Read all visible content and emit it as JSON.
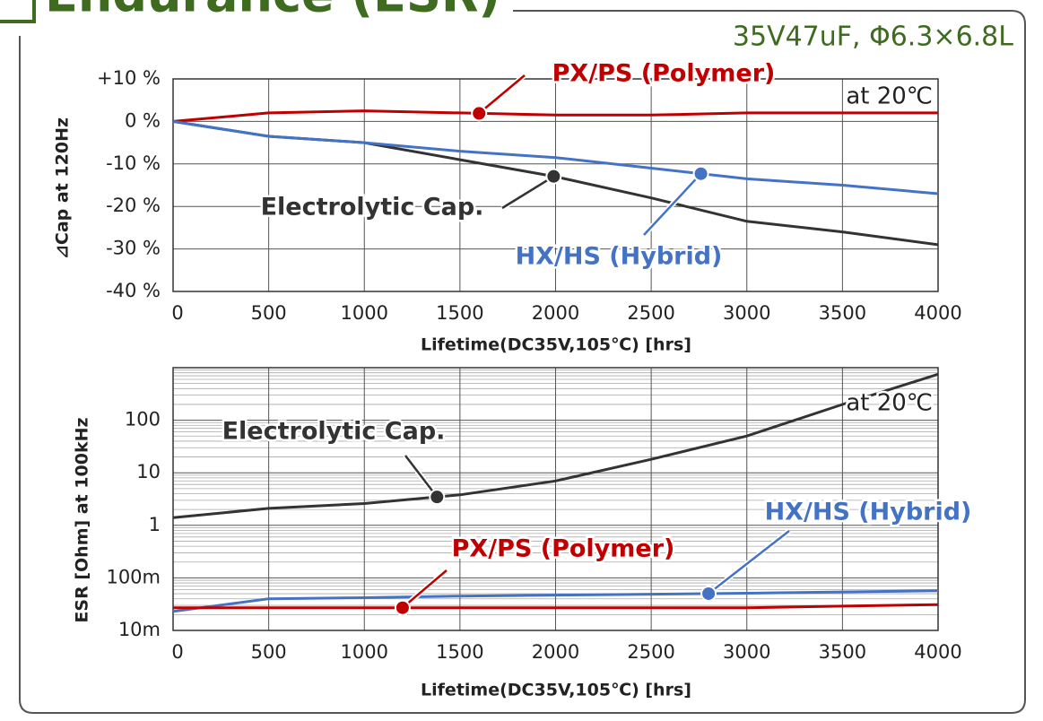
{
  "header": {
    "title": "Endurance (ESR)",
    "subtitle": "35V47uF, Φ6.3×6.8L"
  },
  "chart_data": [
    {
      "type": "line",
      "x_label": "Lifetime(DC35V,105℃) [hrs]",
      "y_label": "⊿Cap at 120Hz",
      "annotation": "at 20℃",
      "x": [
        0,
        500,
        1000,
        1500,
        2000,
        2500,
        3000,
        3500,
        4000
      ],
      "xlim": [
        0,
        4000
      ],
      "xticks": [
        0,
        500,
        1000,
        1500,
        2000,
        2500,
        3000,
        3500,
        4000
      ],
      "ylim": [
        -40,
        10
      ],
      "yticks": [
        {
          "value": -40,
          "label": "-40 %"
        },
        {
          "value": -30,
          "label": "-30 %"
        },
        {
          "value": -20,
          "label": "-20 %"
        },
        {
          "value": -10,
          "label": "-10 %"
        },
        {
          "value": 0,
          "label": "0 %"
        },
        {
          "value": 10,
          "label": "+10 %"
        }
      ],
      "grid": true,
      "log_y": false,
      "series": [
        {
          "name": "PX/PS (Polymer)",
          "color": "#c00000",
          "values": [
            0,
            2,
            2.5,
            2,
            1.5,
            1.5,
            2,
            2,
            2
          ]
        },
        {
          "name": "Electrolytic Cap.",
          "color": "#333333",
          "values": [
            0,
            -3.5,
            -5,
            -9,
            -13,
            -18,
            -23.5,
            -26,
            -29
          ]
        },
        {
          "name": "HX/HS (Hybrid)",
          "color": "#4472c4",
          "values": [
            0,
            -3.5,
            -5,
            -7,
            -8.5,
            -11,
            -13.5,
            -15,
            -17
          ]
        }
      ]
    },
    {
      "type": "line",
      "x_label": "Lifetime(DC35V,105℃) [hrs]",
      "y_label": "ESR [Ohm] at 100kHz",
      "annotation": "at 20℃",
      "x": [
        0,
        500,
        1000,
        1500,
        2000,
        2500,
        3000,
        3500,
        4000
      ],
      "xlim": [
        0,
        4000
      ],
      "xticks": [
        0,
        500,
        1000,
        1500,
        2000,
        2500,
        3000,
        3500,
        4000
      ],
      "ylim": [
        0.01,
        1000
      ],
      "yticks": [
        {
          "value": 0.01,
          "label": "10m"
        },
        {
          "value": 0.1,
          "label": "100m"
        },
        1,
        10,
        100
      ],
      "grid": true,
      "minor_grid": true,
      "log_y": true,
      "series": [
        {
          "name": "Electrolytic Cap.",
          "color": "#333333",
          "values": [
            1.4,
            2.1,
            2.6,
            3.8,
            7,
            18,
            50,
            200,
            750
          ]
        },
        {
          "name": "HX/HS (Hybrid)",
          "color": "#4472c4",
          "values": [
            0.023,
            0.04,
            0.042,
            0.045,
            0.047,
            0.049,
            0.051,
            0.054,
            0.057
          ]
        },
        {
          "name": "PX/PS (Polymer)",
          "color": "#c00000",
          "values": [
            0.027,
            0.027,
            0.027,
            0.027,
            0.027,
            0.027,
            0.027,
            0.029,
            0.031
          ]
        }
      ]
    }
  ]
}
